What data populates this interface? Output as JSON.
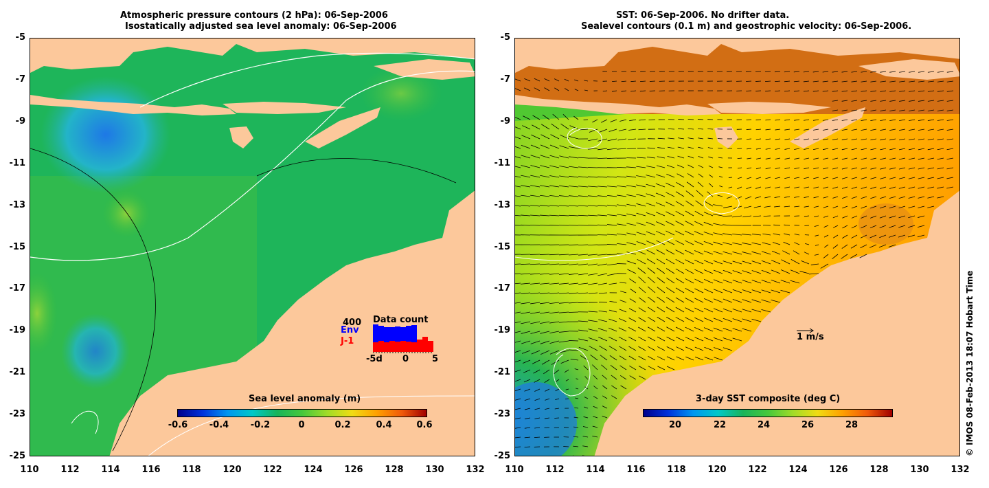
{
  "left_panel": {
    "title_line1": "Atmospheric pressure contours (2 hPa): 06-Sep-2006",
    "title_line2": "Isostatically adjusted sea level anomaly: 06-Sep-2006",
    "colorbar_title": "Sea level anomaly (m)",
    "colorbar_ticks": [
      "-0.6",
      "-0.4",
      "-0.2",
      "0",
      "0.2",
      "0.4",
      "0.6"
    ],
    "data_count": {
      "title": "Data count",
      "max_label": "400",
      "env_label": "Env",
      "j1_label": "J-1",
      "x_ticks": [
        "-5d",
        "0",
        "5"
      ],
      "env_color": "#0000ff",
      "j1_color": "#ff0000"
    }
  },
  "right_panel": {
    "title_line1": "SST: 06-Sep-2006. No drifter data.",
    "title_line2": "Sealevel contours (0.1 m) and geostrophic velocity: 06-Sep-2006.",
    "colorbar_title": "3-day SST composite (deg C)",
    "colorbar_ticks": [
      "20",
      "22",
      "24",
      "26",
      "28"
    ],
    "velocity_scale_label": "1 m/s"
  },
  "axes": {
    "y_ticks": [
      "-5",
      "-7",
      "-9",
      "-11",
      "-13",
      "-15",
      "-17",
      "-19",
      "-21",
      "-23",
      "-25"
    ],
    "x_ticks": [
      "110",
      "112",
      "114",
      "116",
      "118",
      "120",
      "122",
      "124",
      "126",
      "128",
      "130",
      "132"
    ]
  },
  "credit": "© IMOS 08-Feb-2013 18:07 Hobart Time",
  "colors": {
    "land": "#fcc89b",
    "sla_ocean": "#19b45a",
    "sst_warm": "#ffb400",
    "sst_hot": "#d26414",
    "sst_cool": "#32c832"
  }
}
